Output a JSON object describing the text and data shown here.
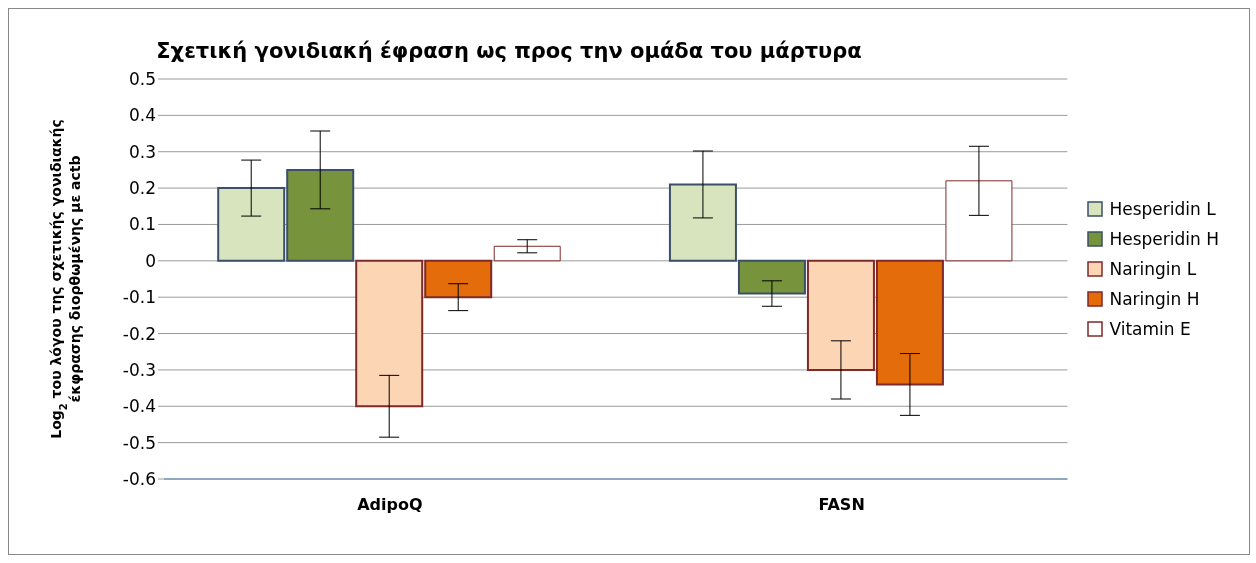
{
  "chart_data": {
    "type": "bar",
    "title": "Σχετική γονιδιακή έφραση ως προς την ομάδα του μάρτυρα",
    "ylabel": "Log$_{2}$ του λόγου της σχετικής γονιδιακής έκφρασης διορθωμένης με actb",
    "categories": [
      "AdipoQ",
      "FASN"
    ],
    "series": [
      {
        "name": "Hesperidin L",
        "color": "#d7e4bd",
        "values": [
          0.2,
          0.21
        ],
        "errors": [
          0.077,
          0.092
        ]
      },
      {
        "name": "Hesperidin H",
        "color": "#77933c",
        "values": [
          0.25,
          -0.09
        ],
        "errors": [
          0.107,
          0.035
        ]
      },
      {
        "name": "Naringin L",
        "color": "#fcd5b5",
        "values": [
          -0.4,
          -0.3
        ],
        "errors": [
          0.085,
          0.08
        ]
      },
      {
        "name": "Naringin H",
        "color": "#e46c0a",
        "values": [
          -0.1,
          -0.34
        ],
        "errors": [
          0.037,
          0.085
        ]
      },
      {
        "name": "Vitamin E",
        "color": "#ffffff",
        "values": [
          0.04,
          0.22
        ],
        "errors": [
          0.018,
          0.095
        ]
      }
    ],
    "ylim": [
      -0.6,
      0.5
    ],
    "yticks": [
      -0.6,
      -0.5,
      -0.4,
      -0.3,
      -0.2,
      -0.1,
      0,
      0.1,
      0.2,
      0.3,
      0.4,
      0.5
    ],
    "grid": "y",
    "legend": "right"
  }
}
